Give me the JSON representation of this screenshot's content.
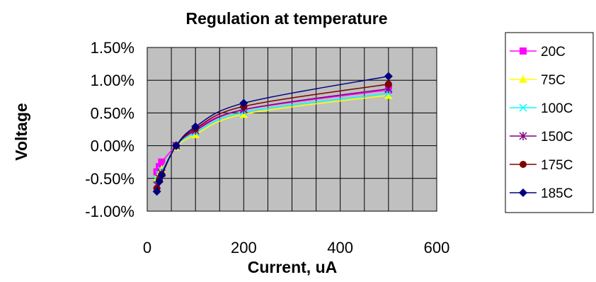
{
  "chart_data": {
    "type": "line",
    "title": "Regulation at temperature",
    "xlabel": "Current, uA",
    "ylabel": "Voltage",
    "xlim": [
      0,
      600
    ],
    "ylim": [
      -1.0,
      1.5
    ],
    "xticks": [
      "0",
      "200",
      "400",
      "600"
    ],
    "yticks": [
      "-1.00%",
      "-0.50%",
      "0.00%",
      "0.50%",
      "1.00%",
      "1.50%"
    ],
    "y_unit": "%",
    "grid": true,
    "plot_background": "#c0c0c0",
    "legend_position": "right",
    "series": [
      {
        "name": "20C",
        "color": "#ff00ff",
        "marker": "square",
        "x": [
          20,
          25,
          30,
          60,
          100,
          200,
          500
        ],
        "y": [
          -0.4,
          -0.32,
          -0.25,
          0.0,
          0.25,
          0.55,
          0.85
        ]
      },
      {
        "name": "75C",
        "color": "#ffff00",
        "marker": "triangle",
        "x": [
          20,
          25,
          30,
          60,
          100,
          200,
          500
        ],
        "y": [
          -0.5,
          -0.42,
          -0.36,
          -0.02,
          0.17,
          0.48,
          0.77
        ]
      },
      {
        "name": "100C",
        "color": "#00ffff",
        "marker": "x",
        "x": [
          20,
          25,
          30,
          60,
          100,
          200,
          500
        ],
        "y": [
          -0.52,
          -0.44,
          -0.38,
          -0.01,
          0.2,
          0.51,
          0.8
        ]
      },
      {
        "name": "150C",
        "color": "#800080",
        "marker": "asterisk",
        "x": [
          20,
          25,
          30,
          60,
          100,
          200,
          500
        ],
        "y": [
          -0.6,
          -0.5,
          -0.42,
          0.0,
          0.23,
          0.55,
          0.87
        ]
      },
      {
        "name": "175C",
        "color": "#800000",
        "marker": "circle",
        "x": [
          20,
          25,
          30,
          60,
          100,
          200,
          500
        ],
        "y": [
          -0.65,
          -0.52,
          -0.44,
          0.0,
          0.26,
          0.6,
          0.94
        ]
      },
      {
        "name": "185C",
        "color": "#000080",
        "marker": "diamond",
        "x": [
          20,
          25,
          30,
          60,
          100,
          200,
          500
        ],
        "y": [
          -0.7,
          -0.55,
          -0.45,
          0.0,
          0.29,
          0.65,
          1.06
        ]
      }
    ]
  }
}
